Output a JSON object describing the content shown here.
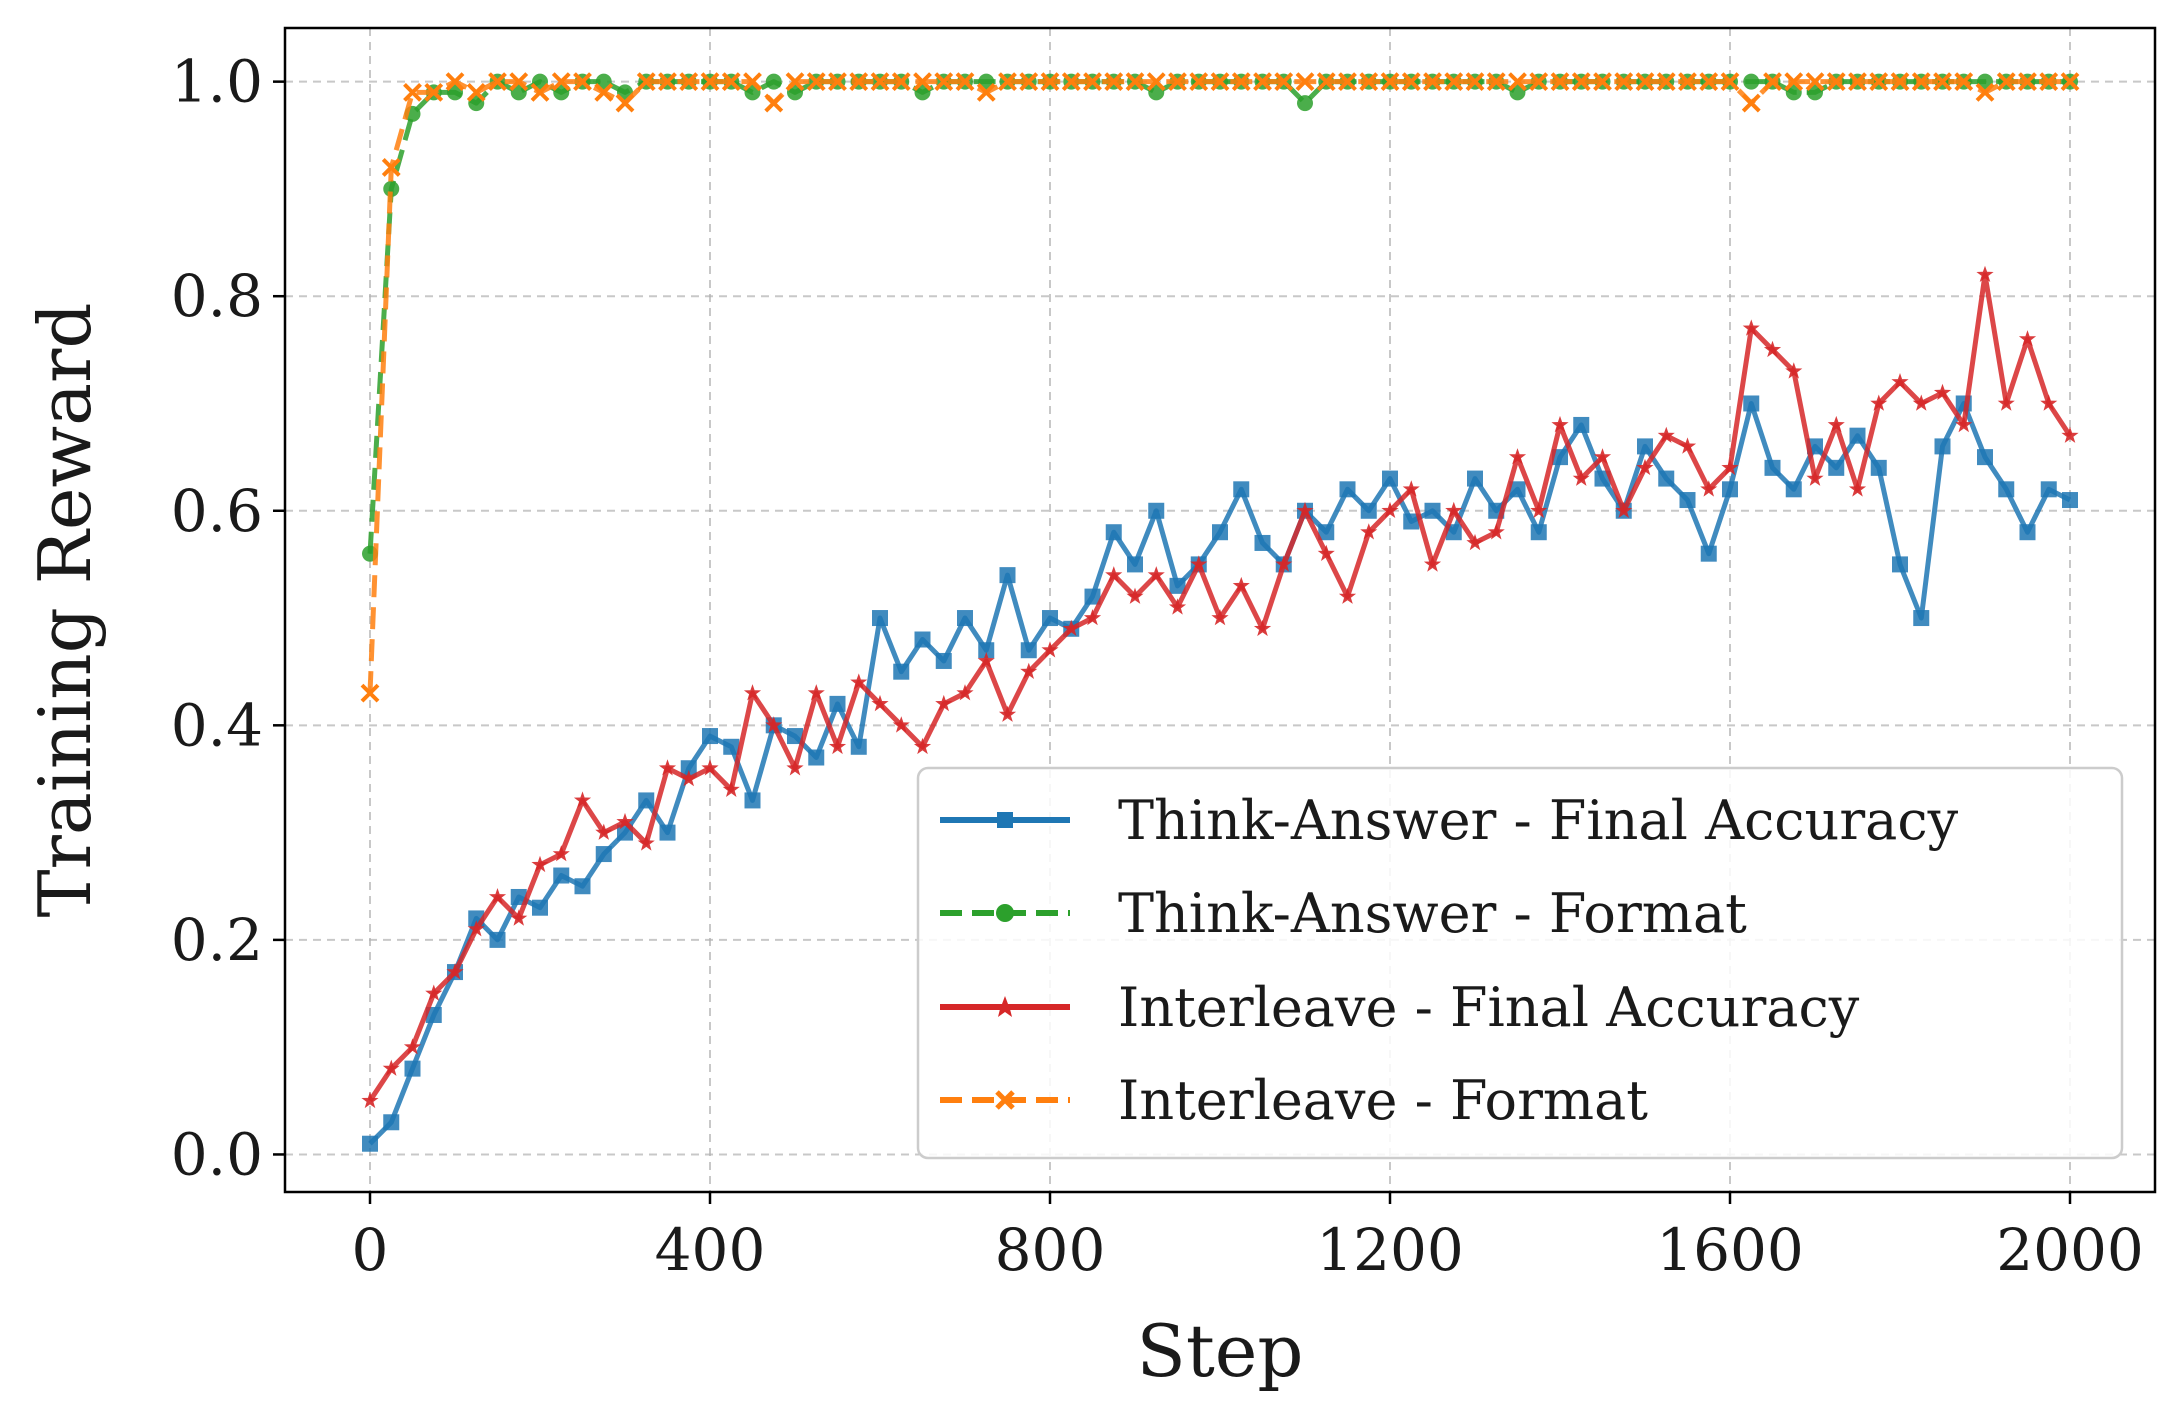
{
  "chart_data": {
    "type": "line",
    "title": "",
    "xlabel": "Step",
    "ylabel": "Training Reward",
    "xlim": [
      -100,
      2100
    ],
    "ylim": [
      -0.035,
      1.05
    ],
    "x_ticks": [
      "0",
      "400",
      "800",
      "1200",
      "1600",
      "2000"
    ],
    "y_ticks": [
      "0.0",
      "0.2",
      "0.4",
      "0.6",
      "0.8",
      "1.0"
    ],
    "grid": true,
    "legend_position": "lower-right",
    "x": [
      0,
      25,
      50,
      75,
      100,
      125,
      150,
      175,
      200,
      225,
      250,
      275,
      300,
      325,
      350,
      375,
      400,
      425,
      450,
      475,
      500,
      525,
      550,
      575,
      600,
      625,
      650,
      675,
      700,
      725,
      750,
      775,
      800,
      825,
      850,
      875,
      900,
      925,
      950,
      975,
      1000,
      1025,
      1050,
      1075,
      1100,
      1125,
      1150,
      1175,
      1200,
      1225,
      1250,
      1275,
      1300,
      1325,
      1350,
      1375,
      1400,
      1425,
      1450,
      1475,
      1500,
      1525,
      1550,
      1575,
      1600,
      1625,
      1650,
      1675,
      1700,
      1725,
      1750,
      1775,
      1800,
      1825,
      1850,
      1875,
      1900,
      1925,
      1950,
      1975,
      2000
    ],
    "series": [
      {
        "name": "Think-Answer - Final Accuracy",
        "color": "#1f77b4",
        "style": "solid",
        "marker": "square",
        "values": [
          0.01,
          0.03,
          0.08,
          0.13,
          0.17,
          0.22,
          0.2,
          0.24,
          0.23,
          0.26,
          0.25,
          0.28,
          0.3,
          0.33,
          0.3,
          0.36,
          0.39,
          0.38,
          0.33,
          0.4,
          0.39,
          0.37,
          0.42,
          0.38,
          0.5,
          0.45,
          0.48,
          0.46,
          0.5,
          0.47,
          0.54,
          0.47,
          0.5,
          0.49,
          0.52,
          0.58,
          0.55,
          0.6,
          0.53,
          0.55,
          0.58,
          0.62,
          0.57,
          0.55,
          0.6,
          0.58,
          0.62,
          0.6,
          0.63,
          0.59,
          0.6,
          0.58,
          0.63,
          0.6,
          0.62,
          0.58,
          0.65,
          0.68,
          0.63,
          0.6,
          0.66,
          0.63,
          0.61,
          0.56,
          0.62,
          0.7,
          0.64,
          0.62,
          0.66,
          0.64,
          0.67,
          0.64,
          0.55,
          0.5,
          0.66,
          0.7,
          0.65,
          0.62,
          0.58,
          0.62,
          0.61
        ]
      },
      {
        "name": "Think-Answer - Format",
        "color": "#2ca02c",
        "style": "dashed",
        "marker": "circle",
        "values": [
          0.56,
          0.9,
          0.97,
          0.99,
          0.99,
          0.98,
          1.0,
          0.99,
          1.0,
          0.99,
          1.0,
          1.0,
          0.99,
          1.0,
          1.0,
          1.0,
          1.0,
          1.0,
          0.99,
          1.0,
          0.99,
          1.0,
          1.0,
          1.0,
          1.0,
          1.0,
          0.99,
          1.0,
          1.0,
          1.0,
          1.0,
          1.0,
          1.0,
          1.0,
          1.0,
          1.0,
          1.0,
          0.99,
          1.0,
          1.0,
          1.0,
          1.0,
          1.0,
          1.0,
          0.98,
          1.0,
          1.0,
          1.0,
          1.0,
          1.0,
          1.0,
          1.0,
          1.0,
          1.0,
          0.99,
          1.0,
          1.0,
          1.0,
          1.0,
          1.0,
          1.0,
          1.0,
          1.0,
          1.0,
          1.0,
          1.0,
          1.0,
          0.99,
          0.99,
          1.0,
          1.0,
          1.0,
          1.0,
          1.0,
          1.0,
          1.0,
          1.0,
          1.0,
          1.0,
          1.0,
          1.0
        ]
      },
      {
        "name": "Interleave - Final Accuracy",
        "color": "#d62728",
        "style": "solid",
        "marker": "star",
        "values": [
          0.05,
          0.08,
          0.1,
          0.15,
          0.17,
          0.21,
          0.24,
          0.22,
          0.27,
          0.28,
          0.33,
          0.3,
          0.31,
          0.29,
          0.36,
          0.35,
          0.36,
          0.34,
          0.43,
          0.4,
          0.36,
          0.43,
          0.38,
          0.44,
          0.42,
          0.4,
          0.38,
          0.42,
          0.43,
          0.46,
          0.41,
          0.45,
          0.47,
          0.49,
          0.5,
          0.54,
          0.52,
          0.54,
          0.51,
          0.55,
          0.5,
          0.53,
          0.49,
          0.55,
          0.6,
          0.56,
          0.52,
          0.58,
          0.6,
          0.62,
          0.55,
          0.6,
          0.57,
          0.58,
          0.65,
          0.6,
          0.68,
          0.63,
          0.65,
          0.6,
          0.64,
          0.67,
          0.66,
          0.62,
          0.64,
          0.77,
          0.75,
          0.73,
          0.63,
          0.68,
          0.62,
          0.7,
          0.72,
          0.7,
          0.71,
          0.68,
          0.82,
          0.7,
          0.76,
          0.7,
          0.67
        ]
      },
      {
        "name": "Interleave - Format",
        "color": "#ff7f0e",
        "style": "dashed",
        "marker": "x",
        "values": [
          0.43,
          0.92,
          0.99,
          0.99,
          1.0,
          0.99,
          1.0,
          1.0,
          0.99,
          1.0,
          1.0,
          0.99,
          0.98,
          1.0,
          1.0,
          1.0,
          1.0,
          1.0,
          1.0,
          0.98,
          1.0,
          1.0,
          1.0,
          1.0,
          1.0,
          1.0,
          1.0,
          1.0,
          1.0,
          0.99,
          1.0,
          1.0,
          1.0,
          1.0,
          1.0,
          1.0,
          1.0,
          1.0,
          1.0,
          1.0,
          1.0,
          1.0,
          1.0,
          1.0,
          1.0,
          1.0,
          1.0,
          1.0,
          1.0,
          1.0,
          1.0,
          1.0,
          1.0,
          1.0,
          1.0,
          1.0,
          1.0,
          1.0,
          1.0,
          1.0,
          1.0,
          1.0,
          1.0,
          1.0,
          1.0,
          0.98,
          1.0,
          1.0,
          1.0,
          1.0,
          1.0,
          1.0,
          1.0,
          1.0,
          1.0,
          1.0,
          0.99,
          1.0,
          1.0,
          1.0,
          1.0
        ]
      }
    ]
  }
}
